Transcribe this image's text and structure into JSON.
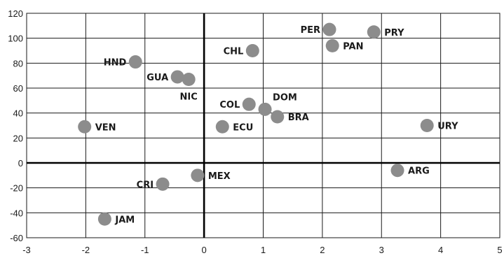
{
  "chart_data": {
    "type": "scatter",
    "title": "",
    "xlabel": "",
    "ylabel": "",
    "xlim": [
      -3,
      5
    ],
    "ylim": [
      -60,
      120
    ],
    "xticks": [
      -3,
      -2,
      -1,
      0,
      1,
      2,
      3,
      4,
      5
    ],
    "yticks": [
      -60,
      -40,
      -20,
      0,
      20,
      40,
      60,
      80,
      100,
      120
    ],
    "grid": true,
    "marker_color": "#8c8c8c",
    "points": [
      {
        "label": "PER",
        "x": 2.12,
        "y": 107,
        "label_side": "left"
      },
      {
        "label": "PRY",
        "x": 2.87,
        "y": 105,
        "label_side": "right"
      },
      {
        "label": "PAN",
        "x": 2.17,
        "y": 94,
        "label_side": "right"
      },
      {
        "label": "CHL",
        "x": 0.82,
        "y": 90,
        "label_side": "left"
      },
      {
        "label": "HND",
        "x": -1.16,
        "y": 81,
        "label_side": "left"
      },
      {
        "label": "GUA",
        "x": -0.45,
        "y": 69,
        "label_side": "left"
      },
      {
        "label": "NIC",
        "x": -0.26,
        "y": 67,
        "label_side": "below"
      },
      {
        "label": "COL",
        "x": 0.76,
        "y": 47,
        "label_side": "left"
      },
      {
        "label": "DOM",
        "x": 1.03,
        "y": 43,
        "label_side": "above-right"
      },
      {
        "label": "BRA",
        "x": 1.24,
        "y": 37,
        "label_side": "right"
      },
      {
        "label": "VEN",
        "x": -2.02,
        "y": 29,
        "label_side": "right"
      },
      {
        "label": "ECU",
        "x": 0.31,
        "y": 29,
        "label_side": "right"
      },
      {
        "label": "URY",
        "x": 3.77,
        "y": 30,
        "label_side": "right"
      },
      {
        "label": "ARG",
        "x": 3.27,
        "y": -6,
        "label_side": "right"
      },
      {
        "label": "MEX",
        "x": -0.11,
        "y": -10,
        "label_side": "right"
      },
      {
        "label": "CRI",
        "x": -0.7,
        "y": -17,
        "label_side": "left"
      },
      {
        "label": "JAM",
        "x": -1.68,
        "y": -45,
        "label_side": "right"
      }
    ]
  }
}
